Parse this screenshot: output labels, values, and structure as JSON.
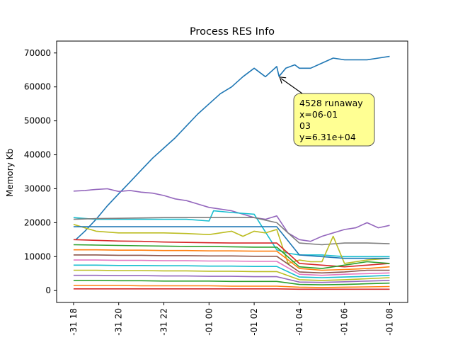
{
  "chart_data": {
    "type": "line",
    "title": "Process RES Info",
    "xlabel": "",
    "ylabel": "Memory Kb",
    "y_ticks": [
      0,
      10000,
      20000,
      30000,
      40000,
      50000,
      60000,
      70000
    ],
    "y_tick_labels": [
      "0",
      "10000",
      "20000",
      "30000",
      "40000",
      "50000",
      "60000",
      "70000"
    ],
    "ylim": [
      -3500,
      73500
    ],
    "x_tick_hours": [
      18,
      20,
      22,
      24,
      26,
      28,
      30,
      32,
      34
    ],
    "x_tick_labels": [
      "-31 18",
      "-31 20",
      "-31 22",
      "-01 00",
      "-01 02",
      "-01 04",
      "-01 06",
      "-01 08"
    ],
    "xlim_hours": [
      17.25,
      32.8
    ],
    "grid": false,
    "legend": "none",
    "annotation": {
      "lines": [
        "4528 runaway",
        "x=06-01",
        "03",
        "y=6.31e+04"
      ],
      "x_hour": 27.1,
      "y": 63100,
      "box_color": "#ffff80"
    },
    "series": [
      {
        "color": "#1f77b4",
        "x": [
          18.1,
          18.5,
          19.0,
          19.5,
          20.0,
          20.5,
          21.0,
          21.5,
          22.0,
          22.5,
          23.0,
          23.5,
          24.0,
          24.5,
          25.0,
          25.5,
          26.0,
          26.5,
          27.0,
          27.1,
          27.4,
          27.8,
          28.0,
          28.5,
          29.0,
          29.5,
          30.0,
          30.5,
          31.0,
          31.5,
          32.0
        ],
        "y": [
          15000,
          17500,
          21000,
          25000,
          28500,
          32000,
          35500,
          39000,
          42000,
          45000,
          48500,
          52000,
          55000,
          58000,
          60000,
          63000,
          65500,
          63000,
          66000,
          63100,
          65500,
          66500,
          65500,
          65500,
          67000,
          68500,
          68000,
          68000,
          68000,
          68500,
          69000
        ]
      },
      {
        "color": "#9467bd",
        "x": [
          18.0,
          18.5,
          19.0,
          19.5,
          20.0,
          20.5,
          21.0,
          21.5,
          22.0,
          22.5,
          23.0,
          23.5,
          24.0,
          24.5,
          25.0,
          25.5,
          26.0,
          26.5,
          27.0,
          27.5,
          28.0,
          28.5,
          29.0,
          29.5,
          30.0,
          30.5,
          31.0,
          31.5,
          32.0
        ],
        "y": [
          29300,
          29500,
          29800,
          30000,
          29200,
          29500,
          29000,
          28700,
          28000,
          27000,
          26500,
          25500,
          24500,
          24000,
          23500,
          22500,
          21500,
          21000,
          22000,
          17000,
          15000,
          14500,
          16000,
          17000,
          18000,
          18500,
          20000,
          18500,
          19200
        ]
      },
      {
        "color": "#17becf",
        "x": [
          18.0,
          19.0,
          20.0,
          21.0,
          22.0,
          23.0,
          24.0,
          24.2,
          25.0,
          26.0,
          27.0,
          27.5,
          28.0,
          29.0,
          30.0,
          31.0,
          32.0
        ],
        "y": [
          21500,
          21000,
          21000,
          21000,
          21000,
          21000,
          20500,
          23500,
          23000,
          22500,
          12000,
          11000,
          10500,
          10500,
          10000,
          10000,
          10000
        ]
      },
      {
        "color": "#7f7f7f",
        "x": [
          18.0,
          19.0,
          20.0,
          21.0,
          22.0,
          23.0,
          24.0,
          25.0,
          26.0,
          27.0,
          27.5,
          28.0,
          29.0,
          30.0,
          31.0,
          32.0
        ],
        "y": [
          21000,
          21200,
          21300,
          21400,
          21500,
          21500,
          21500,
          21500,
          21500,
          20000,
          17000,
          14000,
          13500,
          14000,
          14000,
          13800
        ]
      },
      {
        "color": "#bcbd22",
        "x": [
          18.0,
          19.0,
          20.0,
          21.0,
          22.0,
          23.0,
          24.0,
          25.0,
          25.5,
          26.0,
          26.5,
          27.0,
          27.5,
          28.0,
          28.5,
          29.0,
          29.5,
          30.0,
          31.0,
          32.0
        ],
        "y": [
          19500,
          17500,
          17000,
          17000,
          17000,
          16800,
          16500,
          17500,
          16000,
          17500,
          17000,
          18000,
          8000,
          9000,
          8500,
          8500,
          16000,
          8000,
          9000,
          9500
        ]
      },
      {
        "color": "#1f77b4",
        "x": [
          18.0,
          19.0,
          20.0,
          21.0,
          22.0,
          23.0,
          24.0,
          25.0,
          26.0,
          27.0,
          28.0,
          29.0,
          30.0,
          31.0,
          32.0
        ],
        "y": [
          18800,
          18800,
          18800,
          18800,
          18800,
          18800,
          18800,
          18800,
          18800,
          18800,
          10500,
          10000,
          9500,
          9500,
          9500
        ]
      },
      {
        "color": "#d62728",
        "x": [
          18.0,
          19.0,
          20.0,
          21.0,
          22.0,
          23.0,
          24.0,
          25.0,
          26.0,
          27.0,
          28.0,
          29.0,
          30.0,
          31.0,
          32.0
        ],
        "y": [
          15000,
          14800,
          14600,
          14500,
          14300,
          14200,
          14100,
          14000,
          14000,
          14000,
          8000,
          7500,
          7000,
          7500,
          8000
        ]
      },
      {
        "color": "#2ca02c",
        "x": [
          18.0,
          19.0,
          20.0,
          21.0,
          22.0,
          23.0,
          24.0,
          25.0,
          26.0,
          27.0,
          28.0,
          29.0,
          30.0,
          31.0,
          32.0
        ],
        "y": [
          13500,
          13400,
          13300,
          13200,
          13100,
          13000,
          13000,
          12900,
          12800,
          12800,
          7000,
          6500,
          7500,
          8500,
          8000
        ]
      },
      {
        "color": "#ff7f0e",
        "x": [
          18.0,
          19.0,
          20.0,
          21.0,
          22.0,
          23.0,
          24.0,
          25.0,
          26.0,
          27.0,
          28.0,
          29.0,
          30.0,
          31.0,
          32.0
        ],
        "y": [
          12000,
          12000,
          11900,
          11900,
          11800,
          11800,
          11700,
          11700,
          11600,
          11600,
          6500,
          6000,
          6200,
          6500,
          7000
        ]
      },
      {
        "color": "#8c564b",
        "x": [
          18.0,
          19.0,
          20.0,
          21.0,
          22.0,
          23.0,
          24.0,
          25.0,
          26.0,
          27.0,
          28.0,
          29.0,
          30.0,
          31.0,
          32.0
        ],
        "y": [
          10500,
          10500,
          10400,
          10400,
          10300,
          10300,
          10200,
          10200,
          10100,
          10100,
          5500,
          5200,
          5500,
          6000,
          6000
        ]
      },
      {
        "color": "#e377c2",
        "x": [
          18.0,
          19.0,
          20.0,
          21.0,
          22.0,
          23.0,
          24.0,
          25.0,
          26.0,
          27.0,
          28.0,
          29.0,
          30.0,
          31.0,
          32.0
        ],
        "y": [
          9000,
          9000,
          8900,
          8900,
          8800,
          8800,
          8700,
          8700,
          8600,
          8600,
          4800,
          4500,
          4800,
          5000,
          5200
        ]
      },
      {
        "color": "#17becf",
        "x": [
          18.0,
          19.0,
          20.0,
          21.0,
          22.0,
          23.0,
          24.0,
          25.0,
          26.0,
          27.0,
          28.0,
          29.0,
          30.0,
          31.0,
          32.0
        ],
        "y": [
          7500,
          7500,
          7400,
          7400,
          7300,
          7300,
          7200,
          7200,
          7100,
          7100,
          4000,
          3800,
          4000,
          4200,
          4500
        ]
      },
      {
        "color": "#bcbd22",
        "x": [
          18.0,
          19.0,
          20.0,
          21.0,
          22.0,
          23.0,
          24.0,
          25.0,
          26.0,
          27.0,
          28.0,
          29.0,
          30.0,
          31.0,
          32.0
        ],
        "y": [
          6000,
          6000,
          5900,
          5900,
          5800,
          5800,
          5700,
          5700,
          5600,
          5600,
          3200,
          3000,
          3200,
          3500,
          3800
        ]
      },
      {
        "color": "#9467bd",
        "x": [
          18.0,
          19.0,
          20.0,
          21.0,
          22.0,
          23.0,
          24.0,
          25.0,
          26.0,
          27.0,
          28.0,
          29.0,
          30.0,
          31.0,
          32.0
        ],
        "y": [
          4500,
          4500,
          4400,
          4400,
          4300,
          4300,
          4200,
          4200,
          4100,
          4100,
          2500,
          2400,
          2600,
          2800,
          3000
        ]
      },
      {
        "color": "#2ca02c",
        "x": [
          18.0,
          19.0,
          20.0,
          21.0,
          22.0,
          23.0,
          24.0,
          25.0,
          26.0,
          27.0,
          28.0,
          29.0,
          30.0,
          31.0,
          32.0
        ],
        "y": [
          3000,
          3000,
          2900,
          2900,
          2800,
          2800,
          2800,
          2700,
          2700,
          2700,
          1800,
          1700,
          1800,
          2000,
          2200
        ]
      },
      {
        "color": "#ff7f0e",
        "x": [
          18.0,
          19.0,
          20.0,
          21.0,
          22.0,
          23.0,
          24.0,
          25.0,
          26.0,
          27.0,
          28.0,
          29.0,
          30.0,
          31.0,
          32.0
        ],
        "y": [
          1500,
          1500,
          1500,
          1400,
          1400,
          1400,
          1400,
          1300,
          1300,
          1300,
          1000,
          900,
          1000,
          1100,
          1200
        ]
      },
      {
        "color": "#d62728",
        "x": [
          18.0,
          19.0,
          20.0,
          21.0,
          22.0,
          23.0,
          24.0,
          25.0,
          26.0,
          27.0,
          28.0,
          29.0,
          30.0,
          31.0,
          32.0
        ],
        "y": [
          500,
          500,
          500,
          500,
          500,
          500,
          500,
          500,
          500,
          500,
          400,
          400,
          400,
          400,
          400
        ]
      }
    ]
  }
}
